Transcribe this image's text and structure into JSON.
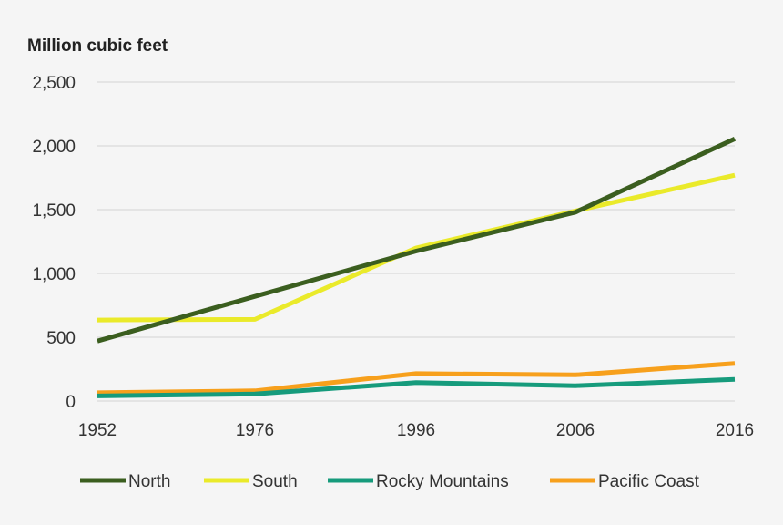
{
  "chart_data": {
    "type": "line",
    "ylabel": "Million cubic feet",
    "x": [
      "1952",
      "1976",
      "1996",
      "2006",
      "2016"
    ],
    "ylim": [
      0,
      2500
    ],
    "yticks": [
      0,
      500,
      1000,
      1500,
      2000,
      2500
    ],
    "ytick_labels": [
      "0",
      "500",
      "1,000",
      "1,500",
      "2,000",
      "2,500"
    ],
    "grid": true,
    "legend_position": "bottom",
    "series": [
      {
        "name": "North",
        "color": "#3b5e1f",
        "values": [
          470,
          820,
          1175,
          1480,
          2055
        ]
      },
      {
        "name": "South",
        "color": "#eaea2a",
        "values": [
          635,
          640,
          1200,
          1490,
          1770
        ]
      },
      {
        "name": "Rocky Mountains",
        "color": "#169b7c",
        "values": [
          40,
          55,
          145,
          120,
          170
        ]
      },
      {
        "name": "Pacific Coast",
        "color": "#f7a01c",
        "values": [
          65,
          80,
          215,
          205,
          295
        ]
      }
    ]
  }
}
